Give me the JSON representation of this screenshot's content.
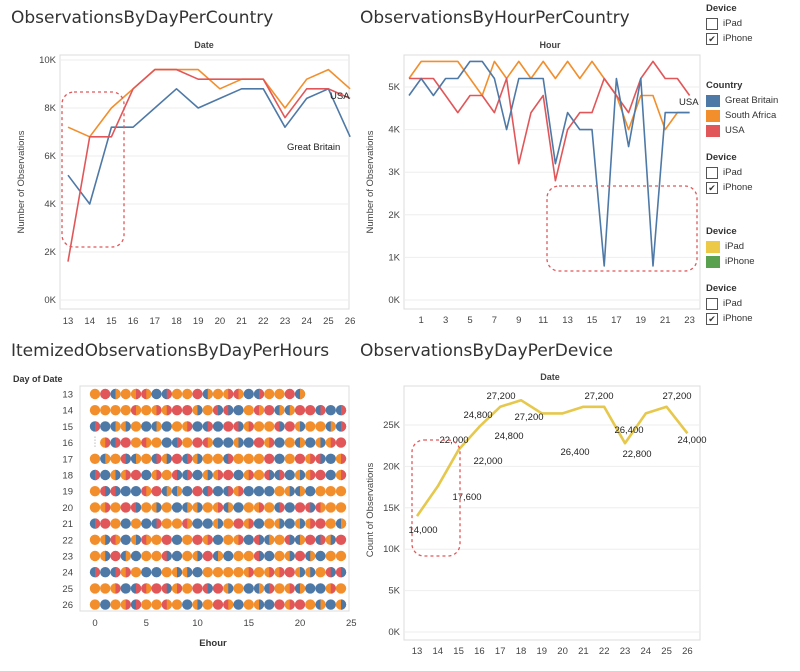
{
  "titles": {
    "c1": "ObservationsByDayPerCountry",
    "c2": "ObservationsByHourPerCountry",
    "c3": "ItemizedObservationsByDayPerHours",
    "c4": "ObservationsByDayPerDevice"
  },
  "legends": {
    "device_title": "Device",
    "country_title": "Country",
    "ipad": "iPad",
    "iphone": "iPhone",
    "countries": [
      {
        "name": "Great Britain",
        "color": "#4e79a7"
      },
      {
        "name": "South Africa",
        "color": "#f28e2b"
      },
      {
        "name": "USA",
        "color": "#e15759"
      }
    ],
    "device_colors": [
      {
        "name": "iPad",
        "color": "#edc948"
      },
      {
        "name": "iPhone",
        "color": "#59a14f"
      }
    ]
  },
  "colors": {
    "gb": "#4e79a7",
    "sa": "#f28e2b",
    "usa": "#e15759",
    "ipad": "#e6c84d",
    "highlight": "#e15759"
  },
  "chart_data": [
    {
      "type": "line",
      "title": "ObservationsByDayPerCountry",
      "header": "Date",
      "ylabel": "Number of Observations",
      "x": [
        13,
        14,
        15,
        16,
        17,
        18,
        19,
        20,
        21,
        22,
        23,
        24,
        25,
        26
      ],
      "ylim": [
        0,
        10000
      ],
      "yticks": [
        0,
        2000,
        4000,
        6000,
        8000,
        10000
      ],
      "yticklabels": [
        "0K",
        "2K",
        "4K",
        "6K",
        "8K",
        "10K"
      ],
      "series": [
        {
          "name": "Great Britain",
          "values": [
            5200,
            4000,
            7200,
            7200,
            8000,
            8800,
            8000,
            8400,
            8800,
            8800,
            7200,
            8400,
            8800,
            6800
          ]
        },
        {
          "name": "South Africa",
          "values": [
            7200,
            6800,
            8000,
            8800,
            9600,
            9600,
            9600,
            8800,
            9200,
            9200,
            8000,
            9200,
            9600,
            8800
          ]
        },
        {
          "name": "USA",
          "values": [
            1600,
            6800,
            6800,
            8800,
            9600,
            9600,
            9200,
            9200,
            9200,
            9200,
            7600,
            8800,
            8800,
            8400
          ]
        }
      ],
      "annotations": [
        "USA",
        "Great Britain"
      ]
    },
    {
      "type": "line",
      "title": "ObservationsByHourPerCountry",
      "header": "Hour",
      "ylabel": "Number of Observations",
      "x": [
        0,
        1,
        2,
        3,
        4,
        5,
        6,
        7,
        8,
        9,
        10,
        11,
        12,
        13,
        14,
        15,
        16,
        17,
        18,
        19,
        20,
        21,
        22,
        23
      ],
      "xticklabels": [
        "1",
        "3",
        "5",
        "7",
        "9",
        "11",
        "13",
        "15",
        "17",
        "19",
        "21",
        "23"
      ],
      "ylim": [
        0,
        6000
      ],
      "yticks": [
        0,
        1000,
        2000,
        3000,
        4000,
        5000
      ],
      "yticklabels": [
        "0K",
        "1K",
        "2K",
        "3K",
        "4K",
        "5K"
      ],
      "series": [
        {
          "name": "Great Britain",
          "values": [
            4800,
            5200,
            4800,
            5200,
            5200,
            5600,
            5600,
            5200,
            4000,
            5200,
            5200,
            5200,
            3200,
            4400,
            4000,
            4000,
            800,
            5200,
            3600,
            5200,
            800,
            4400,
            4400,
            4400
          ]
        },
        {
          "name": "South Africa",
          "values": [
            5200,
            5600,
            5600,
            5600,
            5600,
            5200,
            4800,
            5600,
            5200,
            5600,
            5200,
            5600,
            5200,
            5600,
            5200,
            5600,
            5200,
            4800,
            4000,
            4800,
            4800,
            4000,
            4400,
            4400
          ]
        },
        {
          "name": "USA",
          "values": [
            5200,
            5200,
            5200,
            4800,
            4400,
            4800,
            4800,
            4400,
            5200,
            3200,
            4400,
            4800,
            2800,
            4000,
            4400,
            4400,
            5200,
            4800,
            4400,
            5200,
            5600,
            5200,
            5200,
            4800
          ]
        }
      ],
      "annotations": [
        "USA"
      ]
    },
    {
      "type": "scatter",
      "title": "ItemizedObservationsByDayPerHours",
      "ylabel": "Day of Date",
      "xlabel": "Ehour",
      "categories": [
        "13",
        "14",
        "15",
        "16",
        "17",
        "18",
        "19",
        "20",
        "21",
        "22",
        "23",
        "24",
        "25",
        "26"
      ],
      "xlim": [
        -3,
        25
      ],
      "xticks": [
        0,
        5,
        10,
        15,
        20,
        25
      ],
      "hours_shown": {
        "13": [
          0,
          20
        ],
        "14": [
          0,
          24
        ],
        "15": [
          0,
          24
        ],
        "16": [
          1,
          24
        ],
        "17": [
          0,
          24
        ],
        "18": [
          0,
          24
        ],
        "19": [
          0,
          24
        ],
        "20": [
          0,
          24
        ],
        "21": [
          0,
          24
        ],
        "22": [
          0,
          24
        ],
        "23": [
          0,
          24
        ],
        "24": [
          0,
          24
        ],
        "25": [
          0,
          24
        ],
        "26": [
          0,
          24
        ]
      }
    },
    {
      "type": "line",
      "title": "ObservationsByDayPerDevice",
      "header": "Date",
      "ylabel": "Count of Observations",
      "x": [
        13,
        14,
        15,
        16,
        17,
        18,
        19,
        20,
        21,
        22,
        23,
        24,
        25,
        26
      ],
      "ylim": [
        0,
        28000
      ],
      "yticks": [
        0,
        5000,
        10000,
        15000,
        20000,
        25000
      ],
      "yticklabels": [
        "0K",
        "5K",
        "10K",
        "15K",
        "20K",
        "25K"
      ],
      "series": [
        {
          "name": "iPad",
          "values": [
            14000,
            17600,
            22000,
            24800,
            27200,
            28000,
            26400,
            26400,
            27200,
            27200,
            22800,
            26400,
            27200,
            24000
          ]
        }
      ],
      "data_labels": [
        {
          "x": 13,
          "text": "14,000"
        },
        {
          "x": 14,
          "text": "17,600"
        },
        {
          "x": 14,
          "text": "22,000"
        },
        {
          "x": 15,
          "text": "22,000"
        },
        {
          "x": 15,
          "text": "24,800"
        },
        {
          "x": 16,
          "text": "27,200"
        },
        {
          "x": 16,
          "text": "24,800"
        },
        {
          "x": 17,
          "text": "27,200"
        },
        {
          "x": 19,
          "text": "26,400"
        },
        {
          "x": 21,
          "text": "27,200"
        },
        {
          "x": 22,
          "text": "26,400"
        },
        {
          "x": 23,
          "text": "22,800"
        },
        {
          "x": 25,
          "text": "27,200"
        },
        {
          "x": 26,
          "text": "24,000"
        }
      ]
    }
  ]
}
